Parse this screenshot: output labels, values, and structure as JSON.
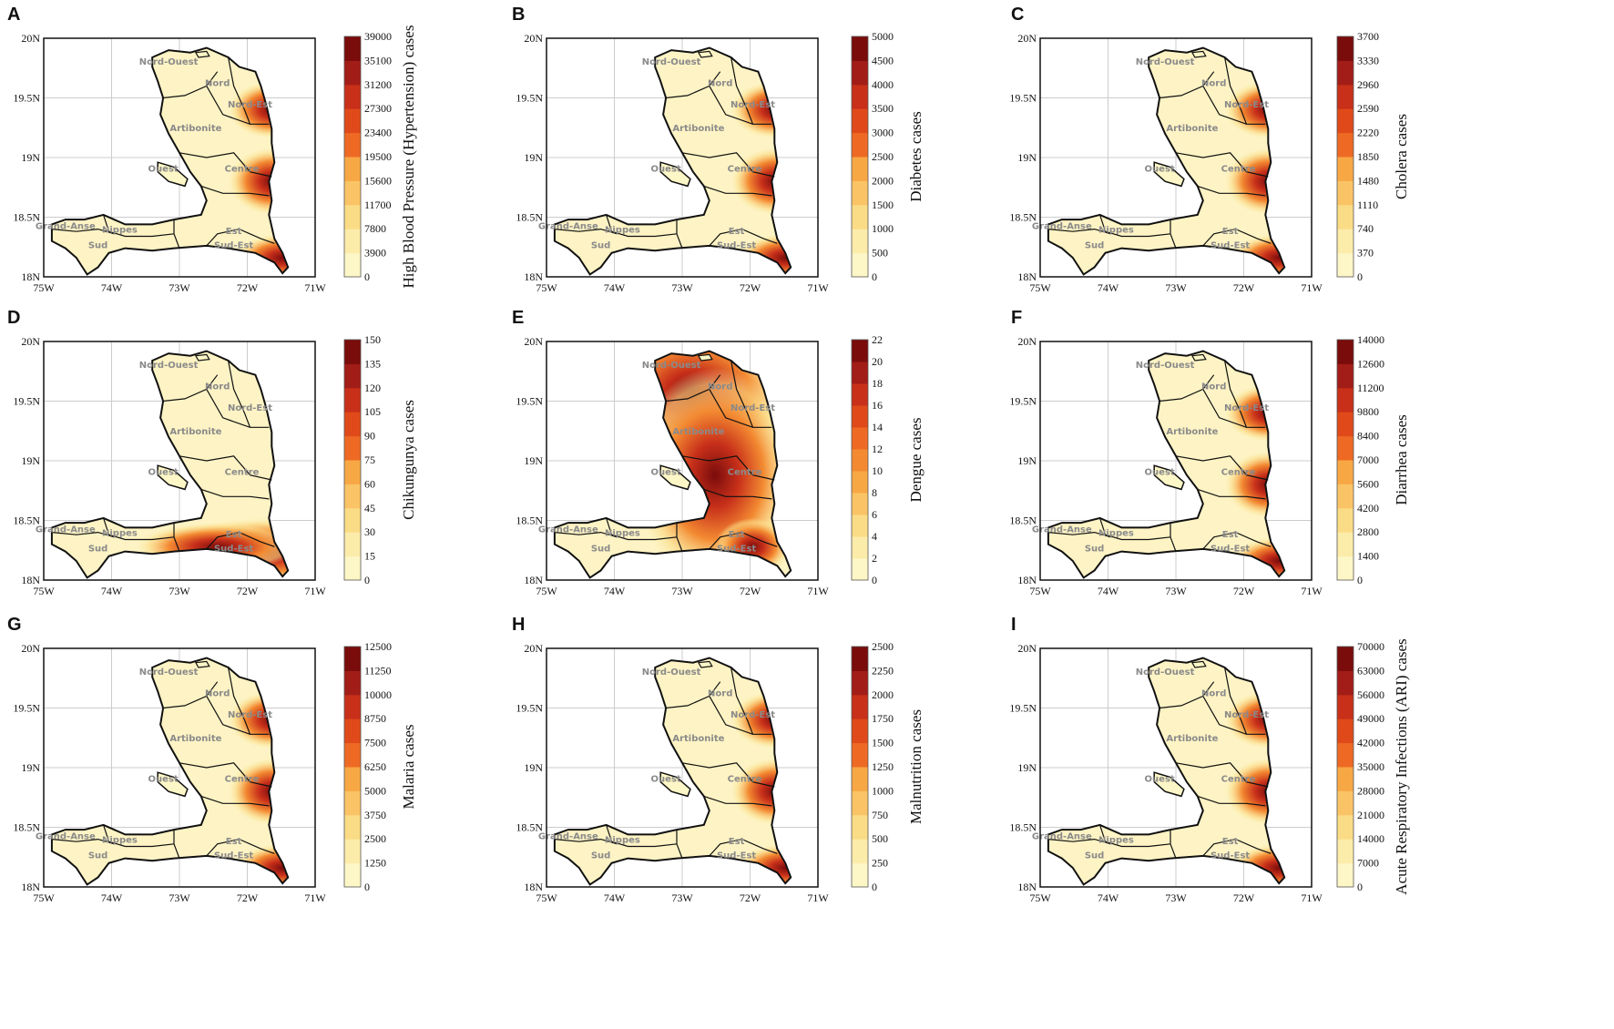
{
  "figure": {
    "x_ticks": [
      "75W",
      "74W",
      "73W",
      "72W",
      "71W"
    ],
    "y_ticks": [
      "20N",
      "19.5N",
      "19N",
      "18.5N",
      "18N"
    ],
    "regions": [
      "Nord-Ouest",
      "Nord",
      "Nord-Est",
      "Artibonite",
      "Centre",
      "Ouest",
      "Grand-Anse",
      "Nippes",
      "Sud",
      "Sud-Est",
      "Est"
    ]
  },
  "chart_data": [
    {
      "type": "heatmap",
      "panel": "A",
      "colorbar_label": "High Blood Pressure (Hypertension) cases",
      "colorbar_ticks": [
        0,
        3900,
        7800,
        11700,
        15600,
        19500,
        23400,
        27300,
        31200,
        35100,
        39000
      ],
      "hotspot": "east"
    },
    {
      "type": "heatmap",
      "panel": "B",
      "colorbar_label": "Diabetes cases",
      "colorbar_ticks": [
        0,
        500,
        1000,
        1500,
        2000,
        2500,
        3000,
        3500,
        4000,
        4500,
        5000
      ],
      "hotspot": "east"
    },
    {
      "type": "heatmap",
      "panel": "C",
      "colorbar_label": "Cholera cases",
      "colorbar_ticks": [
        0,
        370,
        740,
        1110,
        1480,
        1850,
        2220,
        2590,
        2960,
        3330,
        3700
      ],
      "hotspot": "east"
    },
    {
      "type": "heatmap",
      "panel": "D",
      "colorbar_label": "Chikungunya cases",
      "colorbar_ticks": [
        0,
        15,
        30,
        45,
        60,
        75,
        90,
        105,
        120,
        135,
        150
      ],
      "hotspot": "southeast"
    },
    {
      "type": "heatmap",
      "panel": "E",
      "colorbar_label": "Dengue cases",
      "colorbar_ticks": [
        0,
        2,
        4,
        6,
        8,
        10,
        12,
        14,
        16,
        18,
        20,
        22
      ],
      "hotspot": "north"
    },
    {
      "type": "heatmap",
      "panel": "F",
      "colorbar_label": "Diarrhea cases",
      "colorbar_ticks": [
        0,
        1400,
        2800,
        4200,
        5600,
        7000,
        8400,
        9800,
        11200,
        12600,
        14000
      ],
      "hotspot": "east"
    },
    {
      "type": "heatmap",
      "panel": "G",
      "colorbar_label": "Malaria cases",
      "colorbar_ticks": [
        "0",
        "1250",
        "2500",
        "3750",
        "5000",
        "6250",
        "7500",
        "8750",
        "10000",
        "11250",
        "12500"
      ],
      "hotspot": "east"
    },
    {
      "type": "heatmap",
      "panel": "H",
      "colorbar_label": "Malnutrition cases",
      "colorbar_ticks": [
        0,
        250,
        500,
        750,
        1000,
        1250,
        1500,
        1750,
        2000,
        2250,
        2500
      ],
      "hotspot": "east"
    },
    {
      "type": "heatmap",
      "panel": "I",
      "colorbar_label": "Acute Respiratory Infections (ARI) cases",
      "colorbar_ticks": [
        0,
        7000,
        14000,
        21000,
        28000,
        35000,
        42000,
        49000,
        56000,
        63000,
        70000
      ],
      "hotspot": "east"
    }
  ],
  "colors": {
    "ramp": [
      "#fdf6c6",
      "#fcecaa",
      "#fbdc86",
      "#fac466",
      "#f7a845",
      "#f38a32",
      "#ee6a24",
      "#e04a1a",
      "#c8301a",
      "#a21d17",
      "#7a0c0c"
    ],
    "map_base": "#fdf3c4",
    "outline": "#111111",
    "grid": "#cccccc"
  }
}
